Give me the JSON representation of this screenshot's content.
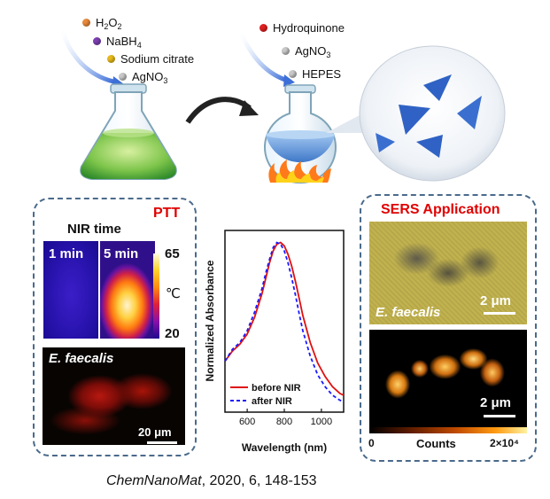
{
  "reagents_left": [
    {
      "name": "H2O2",
      "base": "H",
      "sub1": "2",
      "mid": "O",
      "sub2": "2",
      "color": "#e8883a"
    },
    {
      "name": "NaBH4",
      "base": "NaBH",
      "sub1": "4",
      "color": "#7b3fb0"
    },
    {
      "name": "Sodium citrate",
      "color": "#e6b81c"
    },
    {
      "name": "AgNO3",
      "base": "AgNO",
      "sub1": "3",
      "color": "#a8a8a8"
    }
  ],
  "reagents_right": [
    {
      "name": "Hydroquinone",
      "color": "#e02020"
    },
    {
      "name": "AgNO3",
      "base": "AgNO",
      "sub1": "3",
      "color": "#b0b0b0"
    },
    {
      "name": "HEPES",
      "color": "#b0b0b0"
    }
  ],
  "ptt_panel": {
    "title": "PTT",
    "title_color": "#e00000",
    "nir_time_label": "NIR time",
    "time_labels": [
      "1 min",
      "5 min"
    ],
    "scale_max": "65",
    "scale_min": "20",
    "unit": "℃",
    "organism": "E. faecalis",
    "scale_bar": "20 μm"
  },
  "chart_data": {
    "type": "line",
    "xlabel": "Wavelength (nm)",
    "ylabel": "Normalized Absorbance",
    "xlim": [
      480,
      1120
    ],
    "ylim": [
      0,
      1.05
    ],
    "xticks": [
      600,
      800,
      1000
    ],
    "series": [
      {
        "name": "before NIR",
        "color": "#e01010",
        "dash": "none",
        "x": [
          480,
          520,
          560,
          600,
          640,
          680,
          700,
          720,
          740,
          760,
          780,
          800,
          820,
          840,
          860,
          880,
          900,
          940,
          980,
          1020,
          1060,
          1100,
          1120
        ],
        "y": [
          0.3,
          0.36,
          0.4,
          0.46,
          0.56,
          0.7,
          0.79,
          0.88,
          0.95,
          0.99,
          1.0,
          0.98,
          0.93,
          0.86,
          0.77,
          0.67,
          0.57,
          0.41,
          0.29,
          0.21,
          0.15,
          0.11,
          0.1
        ]
      },
      {
        "name": "after NIR",
        "color": "#1a1aff",
        "dash": "4,3",
        "x": [
          480,
          520,
          560,
          600,
          640,
          680,
          700,
          720,
          740,
          760,
          780,
          800,
          820,
          840,
          860,
          880,
          900,
          940,
          980,
          1020,
          1060,
          1100,
          1120
        ],
        "y": [
          0.3,
          0.37,
          0.41,
          0.48,
          0.59,
          0.73,
          0.82,
          0.9,
          0.97,
          1.0,
          0.99,
          0.95,
          0.88,
          0.79,
          0.69,
          0.58,
          0.48,
          0.33,
          0.22,
          0.15,
          0.1,
          0.07,
          0.06
        ]
      }
    ]
  },
  "sers_panel": {
    "title": "SERS Application",
    "title_color": "#e00000",
    "organism": "E. faecalis",
    "scale_bar_top": "2 μm",
    "scale_bar_bottom": "2 μm",
    "colorbar_min": "0",
    "colorbar_label": "Counts",
    "colorbar_max": "2×10⁴"
  },
  "citation": {
    "journal": "ChemNanoMat",
    "rest": ", 2020, 6, 148-153"
  }
}
